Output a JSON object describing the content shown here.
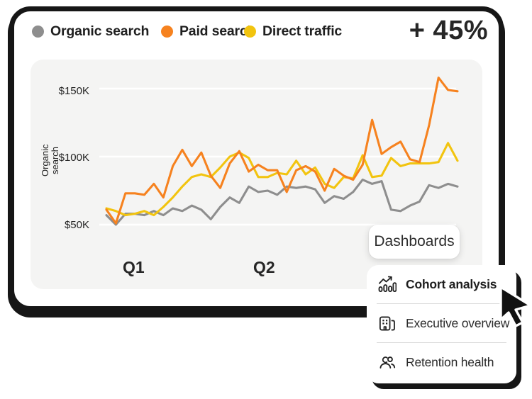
{
  "legend": {
    "items": [
      {
        "label": "Organic search",
        "color": "#8E8E8E"
      },
      {
        "label": "Paid search",
        "color": "#F6821F"
      },
      {
        "label": "Direct traffic",
        "color": "#F2C40F"
      }
    ]
  },
  "kpi": {
    "value": "+ 45%"
  },
  "chart_data": {
    "type": "line",
    "title": "",
    "xlabel": "",
    "ylabel": "Organic search",
    "units": "$K",
    "ylim": [
      45,
      165
    ],
    "grid": true,
    "legend_position": "top",
    "yticks": [
      {
        "label": "$150K",
        "value": 150
      },
      {
        "label": "$100K",
        "value": 100
      },
      {
        "label": "$50K",
        "value": 50
      }
    ],
    "xticks": [
      "Q1",
      "Q2"
    ],
    "series": [
      {
        "name": "Organic search",
        "color": "#8E8E8E",
        "values": [
          57,
          50,
          58,
          58,
          57,
          60,
          57,
          62,
          60,
          64,
          61,
          54,
          63,
          70,
          66,
          78,
          74,
          75,
          72,
          78,
          77,
          78,
          76,
          66,
          71,
          69,
          74,
          83,
          80,
          82,
          61,
          60,
          64,
          67,
          79,
          77,
          80,
          78
        ]
      },
      {
        "name": "Paid search",
        "color": "#F6821F",
        "values": [
          61,
          51,
          73,
          73,
          72,
          80,
          70,
          93,
          105,
          93,
          103,
          86,
          77,
          95,
          104,
          89,
          94,
          90,
          90,
          74,
          90,
          93,
          89,
          75,
          91,
          86,
          83,
          94,
          127,
          102,
          107,
          111,
          98,
          96,
          123,
          158,
          149,
          148
        ]
      },
      {
        "name": "Direct traffic",
        "color": "#F2C40F",
        "values": [
          62,
          60,
          57,
          58,
          60,
          57,
          63,
          70,
          78,
          85,
          87,
          85,
          92,
          100,
          103,
          99,
          85,
          85,
          88,
          87,
          97,
          87,
          92,
          80,
          77,
          85,
          84,
          101,
          85,
          86,
          99,
          93,
          95,
          95,
          95,
          96,
          110,
          97
        ]
      }
    ]
  },
  "dashboards_button": {
    "label": "Dashboards"
  },
  "menu": {
    "items": [
      {
        "icon": "cohort-analysis-icon",
        "label": "Cohort analysis"
      },
      {
        "icon": "executive-overview-icon",
        "label": "Executive overview"
      },
      {
        "icon": "retention-health-icon",
        "label": "Retention health"
      }
    ]
  }
}
